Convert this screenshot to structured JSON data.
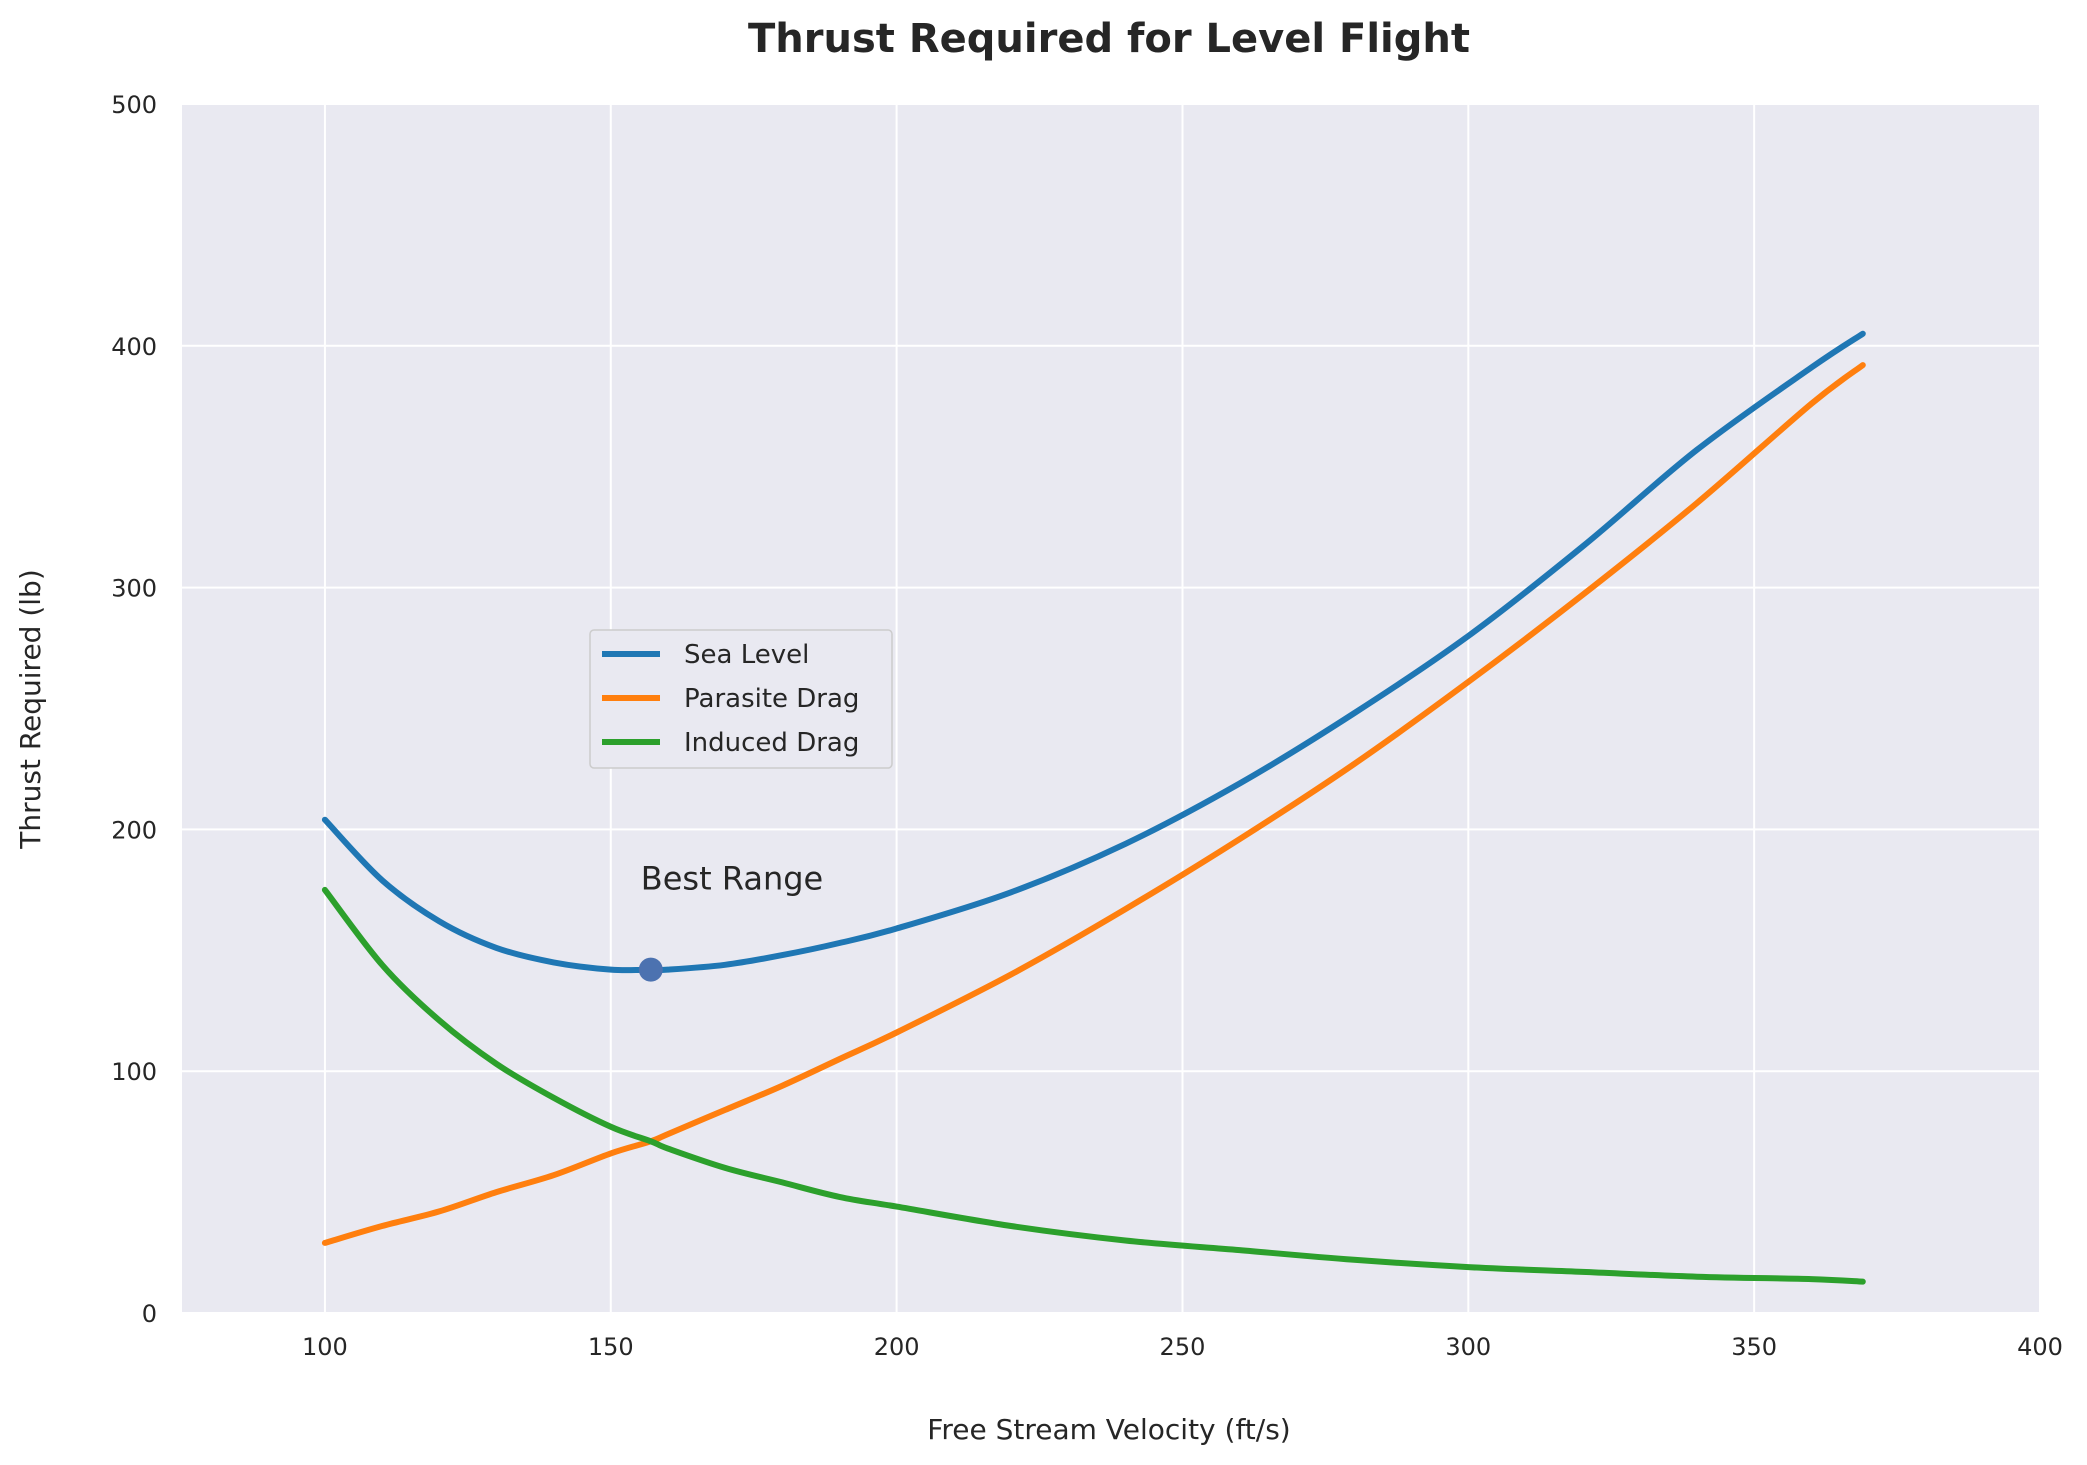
{
  "chart_data": {
    "type": "line",
    "title": "Thrust Required for Level Flight",
    "xlabel": "Free Stream Velocity (ft/s)",
    "ylabel": "Thrust Required (lb)",
    "xlim": [
      75,
      400
    ],
    "ylim": [
      0,
      500
    ],
    "xticks": [
      100,
      150,
      200,
      250,
      300,
      350,
      400
    ],
    "yticks": [
      0,
      100,
      200,
      300,
      400,
      500
    ],
    "grid": true,
    "legend_position": "center-left",
    "background": "#e9e9f1",
    "x": [
      100,
      110,
      120,
      130,
      140,
      150,
      157,
      160,
      170,
      180,
      190,
      200,
      220,
      240,
      260,
      280,
      300,
      320,
      340,
      360,
      369
    ],
    "series": [
      {
        "name": "Sea Level",
        "color": "#1f77b4",
        "values": [
          204,
          179,
          162,
          151,
          145,
          142,
          142,
          142,
          144,
          148,
          153,
          159,
          174,
          194,
          219,
          248,
          280,
          317,
          357,
          391,
          405
        ]
      },
      {
        "name": "Parasite Drag",
        "color": "#ff7f0e",
        "values": [
          29,
          36,
          42,
          50,
          57,
          66,
          71,
          74,
          84,
          94,
          105,
          116,
          140,
          167,
          196,
          227,
          261,
          297,
          335,
          376,
          392
        ]
      },
      {
        "name": "Induced Drag",
        "color": "#2ca02c",
        "values": [
          175,
          144,
          121,
          103,
          89,
          77,
          71,
          68,
          60,
          54,
          48,
          44,
          36,
          30,
          26,
          22,
          19,
          17,
          15,
          14,
          13
        ]
      }
    ],
    "annotations": [
      {
        "text": "Best Range",
        "x": 157,
        "y": 142,
        "marker_color": "#4c72b0"
      }
    ]
  }
}
